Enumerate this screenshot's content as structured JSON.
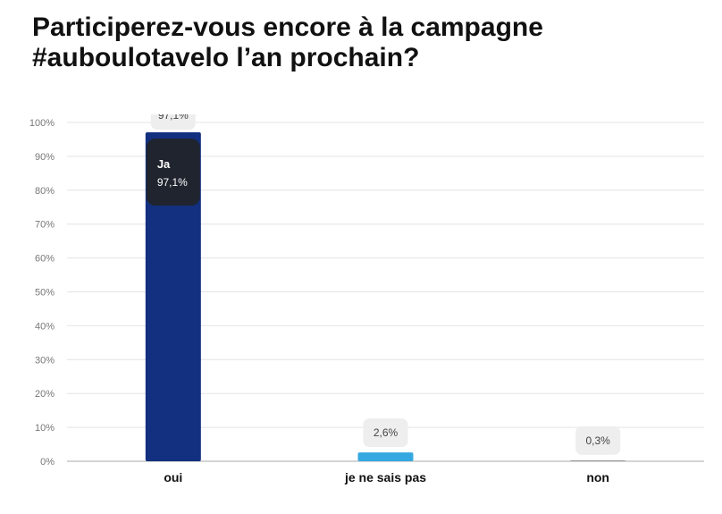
{
  "title_lines": [
    "Participerez-vous encore à la campagne",
    "#auboulotavelo l’an prochain?"
  ],
  "chart_data": {
    "type": "bar",
    "categories": [
      "oui",
      "je ne sais pas",
      "non"
    ],
    "values": [
      97.1,
      2.6,
      0.3
    ],
    "value_labels": [
      "97,1%",
      "2,6%",
      "0,3%"
    ],
    "colors": [
      "#12307F",
      "#36A8E1",
      "#9E9E9E"
    ],
    "ylim": [
      0,
      100
    ],
    "yticks": [
      0,
      10,
      20,
      30,
      40,
      50,
      60,
      70,
      80,
      90,
      100
    ],
    "ytick_labels": [
      "0%",
      "10%",
      "20%",
      "30%",
      "40%",
      "50%",
      "60%",
      "70%",
      "80%",
      "90%",
      "100%"
    ],
    "grid": true,
    "tooltip": {
      "category_index": 0,
      "title": "Ja",
      "value_label": "97,1%"
    }
  }
}
